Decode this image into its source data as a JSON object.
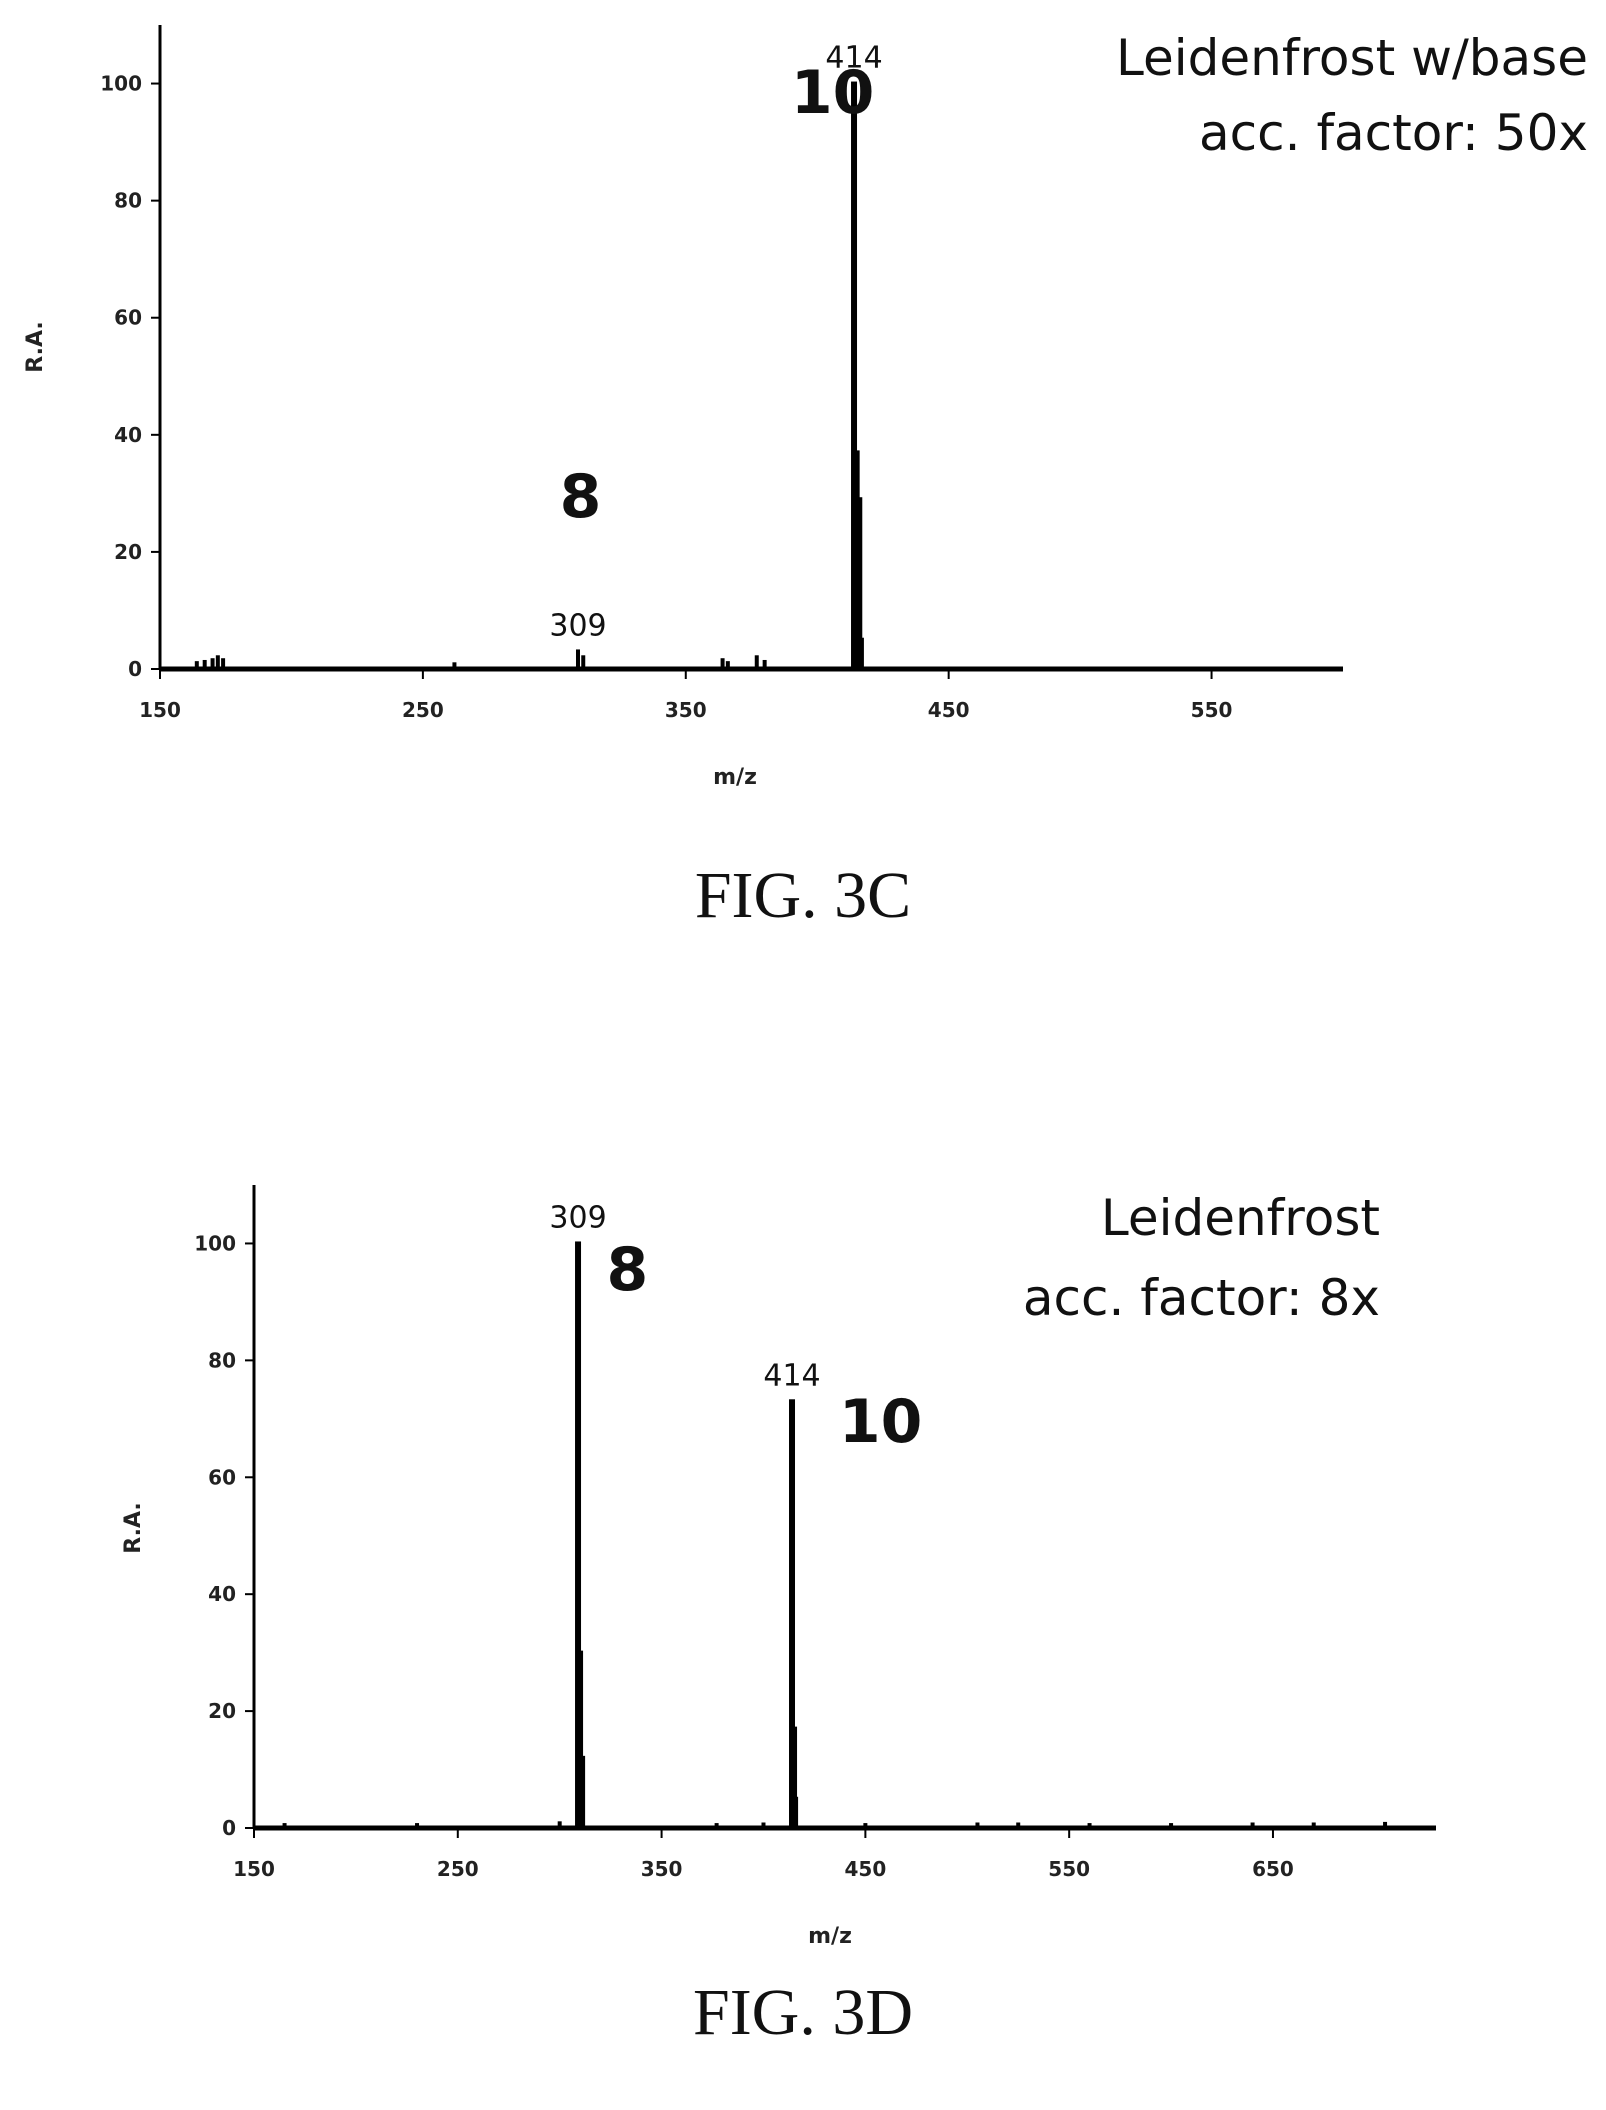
{
  "chart_data": [
    {
      "type": "bar",
      "id": "fig-3c",
      "title": "",
      "xlabel": "m/z",
      "ylabel": "R.A.",
      "xlim": [
        150,
        600
      ],
      "ylim": [
        0,
        110
      ],
      "x_ticks": [
        150,
        250,
        350,
        450,
        550
      ],
      "y_ticks": [
        0,
        20,
        40,
        60,
        80,
        100
      ],
      "annotations": {
        "note_line1": "Leidenfrost w/base",
        "note_line2": "acc. factor: 50x"
      },
      "compound_labels": [
        {
          "text": "10",
          "x": 390,
          "y": 95
        },
        {
          "text": "8",
          "x": 302,
          "y": 26
        }
      ],
      "peak_labels": [
        {
          "text": "414",
          "x": 414,
          "y": 100
        },
        {
          "text": "309",
          "x": 309,
          "y": 3
        }
      ],
      "peaks": [
        {
          "x": 164,
          "y": 1
        },
        {
          "x": 167,
          "y": 1.2
        },
        {
          "x": 170,
          "y": 1.5
        },
        {
          "x": 172,
          "y": 2
        },
        {
          "x": 174,
          "y": 1.5
        },
        {
          "x": 262,
          "y": 0.8
        },
        {
          "x": 309,
          "y": 3
        },
        {
          "x": 311,
          "y": 2
        },
        {
          "x": 364,
          "y": 1.5
        },
        {
          "x": 366,
          "y": 1
        },
        {
          "x": 377,
          "y": 2
        },
        {
          "x": 380,
          "y": 1.2
        },
        {
          "x": 414,
          "y": 100
        },
        {
          "x": 415,
          "y": 37
        },
        {
          "x": 416,
          "y": 29
        },
        {
          "x": 417,
          "y": 5
        }
      ]
    },
    {
      "type": "bar",
      "id": "fig-3d",
      "title": "",
      "xlabel": "m/z",
      "ylabel": "R.A.",
      "xlim": [
        150,
        730
      ],
      "ylim": [
        0,
        110
      ],
      "x_ticks": [
        150,
        250,
        350,
        450,
        550,
        650
      ],
      "y_ticks": [
        0,
        20,
        40,
        60,
        80,
        100
      ],
      "annotations": {
        "note_line1": "Leidenfrost",
        "note_line2": "acc. factor: 8x"
      },
      "compound_labels": [
        {
          "text": "8",
          "x": 323,
          "y": 92
        },
        {
          "text": "10",
          "x": 437,
          "y": 66
        }
      ],
      "peak_labels": [
        {
          "text": "309",
          "x": 309,
          "y": 100
        },
        {
          "text": "414",
          "x": 414,
          "y": 73
        }
      ],
      "peaks": [
        {
          "x": 165,
          "y": 0.5
        },
        {
          "x": 230,
          "y": 0.5
        },
        {
          "x": 300,
          "y": 0.8
        },
        {
          "x": 309,
          "y": 100
        },
        {
          "x": 310,
          "y": 30
        },
        {
          "x": 311,
          "y": 12
        },
        {
          "x": 377,
          "y": 0.5
        },
        {
          "x": 400,
          "y": 0.6
        },
        {
          "x": 414,
          "y": 73
        },
        {
          "x": 415,
          "y": 17
        },
        {
          "x": 416,
          "y": 5
        },
        {
          "x": 450,
          "y": 0.5
        },
        {
          "x": 505,
          "y": 0.6
        },
        {
          "x": 525,
          "y": 0.6
        },
        {
          "x": 560,
          "y": 0.5
        },
        {
          "x": 600,
          "y": 0.5
        },
        {
          "x": 640,
          "y": 0.6
        },
        {
          "x": 670,
          "y": 0.6
        },
        {
          "x": 705,
          "y": 0.7
        }
      ]
    }
  ],
  "captions": {
    "fig_3c": "FIG. 3C",
    "fig_3d": "FIG. 3D"
  },
  "colors": {
    "ink": "#000000"
  }
}
